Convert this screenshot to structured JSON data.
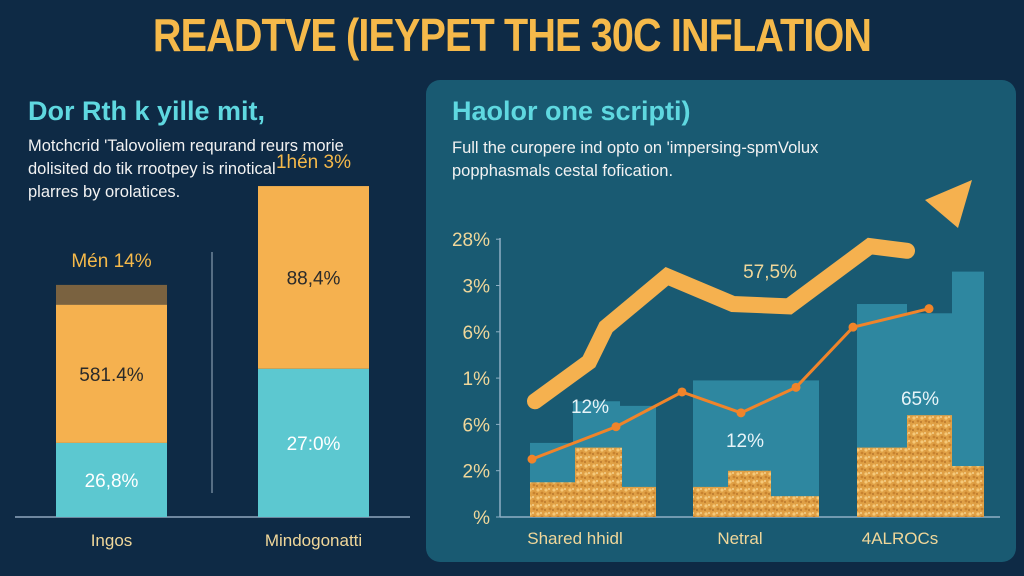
{
  "title": "READTVE (IEYPET THE 30C INFLATION",
  "left_panel": {
    "heading": "Dor Rth k yille mit,",
    "body": [
      "Motchcrid 'Talovoliem requrand reurs morie",
      "dolisited do tik rrootpey is rinotical",
      "plarres by orolatices."
    ]
  },
  "right_panel": {
    "heading": "Haolor one scripti)",
    "body": [
      "Full the curopere ind opto on 'impersing-spmVolux",
      "popphasmals cestal fofication."
    ]
  },
  "colors": {
    "background": "#0e2a45",
    "panel": "#195a72",
    "gold": "#f5b94a",
    "teal": "#5cc8d0",
    "orange_line": "#f0842a",
    "bar_teal": "#2e87a0"
  },
  "chart_data": [
    {
      "type": "bar",
      "stacked": true,
      "categories": [
        "Ingos",
        "Mindogonatti"
      ],
      "top_labels": [
        "Mén 14%",
        "1hén 3%"
      ],
      "series": [
        {
          "color": "#5cc8d0",
          "labels": [
            "26,8%",
            "27:0%"
          ],
          "values": [
            26.8,
            27.0
          ]
        },
        {
          "color": "#f5b14f",
          "labels": [
            "581.4%",
            "88,4%"
          ],
          "values": [
            35,
            25
          ]
        },
        {
          "color": "#7a6240",
          "labels": [
            "",
            ""
          ],
          "values": [
            5,
            0
          ]
        }
      ]
    },
    {
      "type": "bar",
      "categories": [
        "Shared hhidl",
        "Netral",
        "4ALROCs"
      ],
      "y_tick_labels": [
        "%",
        "2%",
        "6%",
        "1%",
        "6%",
        "3%",
        "28%"
      ],
      "grid": false,
      "bars": [
        {
          "group": 0,
          "teal": [
            1.6,
            2.5,
            2.4
          ],
          "gold": [
            0.75,
            1.5,
            0.65
          ]
        },
        {
          "group": 1,
          "teal": [
            2.95
          ],
          "gold": [
            0.65,
            1.0,
            0.45
          ]
        },
        {
          "group": 2,
          "teal": [
            4.6,
            4.4,
            5.3
          ],
          "gold": [
            1.5,
            2.2,
            1.1
          ]
        }
      ],
      "line": {
        "values": [
          1.25,
          1.95,
          2.7,
          2.25,
          2.8,
          4.1,
          4.5
        ]
      },
      "trend_arrow": {
        "values": [
          2.5,
          3.35,
          4.1,
          5.2,
          4.6,
          4.55,
          5.85,
          5.75,
          7.0
        ]
      },
      "annotations": [
        "57,5%",
        "12%",
        "12%",
        "65%"
      ]
    }
  ]
}
